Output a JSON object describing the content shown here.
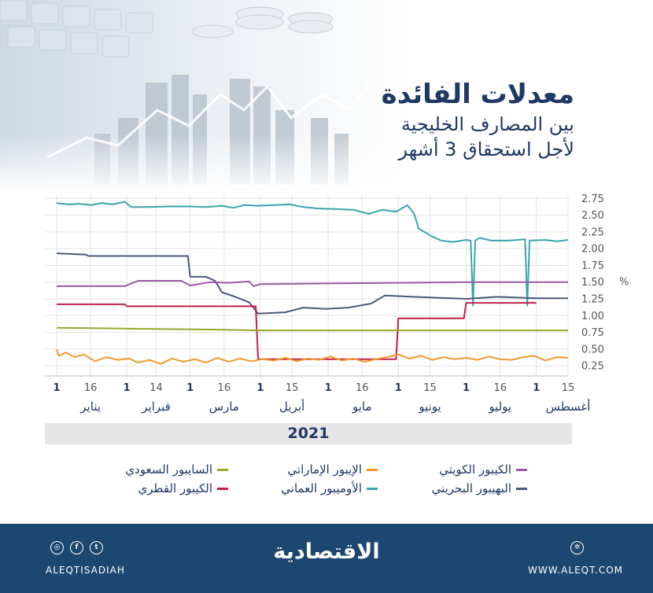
{
  "header": {
    "title": "معدلات الفائدة",
    "subtitle_1": "بين المصارف الخليجية",
    "subtitle_2": "لأجل استحقاق 3 أشهر"
  },
  "chart_data": {
    "type": "line",
    "x_domain": [
      "2021-01-01",
      "2021-08-15"
    ],
    "ylim": [
      0.1,
      2.8
    ],
    "y_ticks": [
      "2.75",
      "2.50",
      "2.25",
      "2.00",
      "1.75",
      "1.50",
      "1.25",
      "1.00",
      "0.75",
      "0.50",
      "0.25"
    ],
    "y_unit": "%",
    "x_ticks": [
      {
        "date": "2021-01-01",
        "label": "1"
      },
      {
        "date": "2021-01-16",
        "label": "16"
      },
      {
        "date": "2021-02-01",
        "label": "1"
      },
      {
        "date": "2021-02-14",
        "label": "14"
      },
      {
        "date": "2021-03-01",
        "label": "1"
      },
      {
        "date": "2021-03-16",
        "label": "16"
      },
      {
        "date": "2021-04-01",
        "label": "1"
      },
      {
        "date": "2021-04-15",
        "label": "15"
      },
      {
        "date": "2021-05-01",
        "label": "1"
      },
      {
        "date": "2021-05-16",
        "label": "16"
      },
      {
        "date": "2021-06-01",
        "label": "1"
      },
      {
        "date": "2021-06-15",
        "label": "15"
      },
      {
        "date": "2021-07-01",
        "label": "1"
      },
      {
        "date": "2021-07-16",
        "label": "16"
      },
      {
        "date": "2021-08-01",
        "label": "1"
      },
      {
        "date": "2021-08-15",
        "label": "15"
      }
    ],
    "months": [
      {
        "date": "2021-01-16",
        "label": "يناير"
      },
      {
        "date": "2021-02-14",
        "label": "فبراير"
      },
      {
        "date": "2021-03-16",
        "label": "مارس"
      },
      {
        "date": "2021-04-15",
        "label": "أبريل"
      },
      {
        "date": "2021-05-16",
        "label": "مايو"
      },
      {
        "date": "2021-06-15",
        "label": "يونيو"
      },
      {
        "date": "2021-07-16",
        "label": "يوليو"
      },
      {
        "date": "2021-08-15",
        "label": "أغسطس"
      }
    ],
    "year": "2021",
    "series": [
      {
        "name": "الأوميبور العماني",
        "color": "#3aa3ad",
        "points": [
          [
            "2021-01-01",
            2.68
          ],
          [
            "2021-01-06",
            2.66
          ],
          [
            "2021-01-11",
            2.67
          ],
          [
            "2021-01-16",
            2.65
          ],
          [
            "2021-01-21",
            2.68
          ],
          [
            "2021-01-26",
            2.66
          ],
          [
            "2021-01-31",
            2.7
          ],
          [
            "2021-02-03",
            2.62
          ],
          [
            "2021-02-10",
            2.62
          ],
          [
            "2021-02-20",
            2.63
          ],
          [
            "2021-03-01",
            2.63
          ],
          [
            "2021-03-08",
            2.62
          ],
          [
            "2021-03-15",
            2.64
          ],
          [
            "2021-03-20",
            2.61
          ],
          [
            "2021-03-25",
            2.65
          ],
          [
            "2021-03-31",
            2.64
          ],
          [
            "2021-04-07",
            2.65
          ],
          [
            "2021-04-14",
            2.66
          ],
          [
            "2021-04-20",
            2.62
          ],
          [
            "2021-04-26",
            2.6
          ],
          [
            "2021-05-05",
            2.59
          ],
          [
            "2021-05-12",
            2.58
          ],
          [
            "2021-05-19",
            2.52
          ],
          [
            "2021-05-25",
            2.58
          ],
          [
            "2021-05-31",
            2.55
          ],
          [
            "2021-06-05",
            2.65
          ],
          [
            "2021-06-08",
            2.52
          ],
          [
            "2021-06-10",
            2.3
          ],
          [
            "2021-06-16",
            2.18
          ],
          [
            "2021-06-20",
            2.12
          ],
          [
            "2021-06-25",
            2.1
          ],
          [
            "2021-07-01",
            2.13
          ],
          [
            "2021-07-03",
            2.12
          ],
          [
            "2021-07-04",
            1.15
          ],
          [
            "2021-07-05",
            2.12
          ],
          [
            "2021-07-07",
            2.16
          ],
          [
            "2021-07-12",
            2.12
          ],
          [
            "2021-07-20",
            2.12
          ],
          [
            "2021-07-27",
            2.14
          ],
          [
            "2021-07-28",
            1.15
          ],
          [
            "2021-07-29",
            2.12
          ],
          [
            "2021-08-05",
            2.13
          ],
          [
            "2021-08-10",
            2.11
          ],
          [
            "2021-08-15",
            2.13
          ]
        ]
      },
      {
        "name": "البهيبور البحريني",
        "color": "#4a5a78",
        "points": [
          [
            "2021-01-01",
            1.93
          ],
          [
            "2021-01-14",
            1.91
          ],
          [
            "2021-01-15",
            1.89
          ],
          [
            "2021-02-28",
            1.89
          ],
          [
            "2021-03-01",
            1.58
          ],
          [
            "2021-03-08",
            1.58
          ],
          [
            "2021-03-12",
            1.52
          ],
          [
            "2021-03-15",
            1.35
          ],
          [
            "2021-03-21",
            1.28
          ],
          [
            "2021-03-27",
            1.2
          ],
          [
            "2021-03-31",
            1.03
          ],
          [
            "2021-04-12",
            1.05
          ],
          [
            "2021-04-20",
            1.12
          ],
          [
            "2021-04-30",
            1.1
          ],
          [
            "2021-05-10",
            1.12
          ],
          [
            "2021-05-20",
            1.18
          ],
          [
            "2021-05-26",
            1.3
          ],
          [
            "2021-06-15",
            1.27
          ],
          [
            "2021-07-01",
            1.25
          ],
          [
            "2021-07-14",
            1.28
          ],
          [
            "2021-07-16",
            1.28
          ],
          [
            "2021-08-01",
            1.26
          ],
          [
            "2021-08-15",
            1.26
          ]
        ]
      },
      {
        "name": "الكيبور الكويتي",
        "color": "#9b59a6",
        "points": [
          [
            "2021-01-01",
            1.44
          ],
          [
            "2021-01-31",
            1.44
          ],
          [
            "2021-02-06",
            1.52
          ],
          [
            "2021-02-25",
            1.52
          ],
          [
            "2021-03-01",
            1.45
          ],
          [
            "2021-03-10",
            1.5
          ],
          [
            "2021-03-18",
            1.49
          ],
          [
            "2021-03-27",
            1.51
          ],
          [
            "2021-03-29",
            1.44
          ],
          [
            "2021-04-01",
            1.47
          ],
          [
            "2021-05-01",
            1.48
          ],
          [
            "2021-06-01",
            1.49
          ],
          [
            "2021-07-01",
            1.5
          ],
          [
            "2021-08-15",
            1.5
          ]
        ]
      },
      {
        "name": "الكيبور القطري",
        "color": "#c0204a",
        "points": [
          [
            "2021-01-01",
            1.17
          ],
          [
            "2021-01-31",
            1.17
          ],
          [
            "2021-02-01",
            1.14
          ],
          [
            "2021-03-30",
            1.14
          ],
          [
            "2021-03-31",
            0.35
          ],
          [
            "2021-05-31",
            0.35
          ],
          [
            "2021-06-01",
            0.96
          ],
          [
            "2021-06-30",
            0.96
          ],
          [
            "2021-07-01",
            1.19
          ],
          [
            "2021-08-01",
            1.19
          ]
        ]
      },
      {
        "name": "السايبور السعودي",
        "color": "#97a82b",
        "points": [
          [
            "2021-01-01",
            0.82
          ],
          [
            "2021-02-15",
            0.8
          ],
          [
            "2021-03-15",
            0.79
          ],
          [
            "2021-04-01",
            0.78
          ],
          [
            "2021-08-15",
            0.78
          ]
        ]
      },
      {
        "name": "الإيبور الإماراتي",
        "color": "#f09a2e",
        "points": [
          [
            "2021-01-01",
            0.5
          ],
          [
            "2021-01-02",
            0.4
          ],
          [
            "2021-01-05",
            0.45
          ],
          [
            "2021-01-09",
            0.38
          ],
          [
            "2021-01-13",
            0.42
          ],
          [
            "2021-01-18",
            0.32
          ],
          [
            "2021-01-23",
            0.38
          ],
          [
            "2021-01-28",
            0.34
          ],
          [
            "2021-02-02",
            0.36
          ],
          [
            "2021-02-06",
            0.3
          ],
          [
            "2021-02-11",
            0.34
          ],
          [
            "2021-02-16",
            0.28
          ],
          [
            "2021-02-21",
            0.36
          ],
          [
            "2021-02-26",
            0.31
          ],
          [
            "2021-03-03",
            0.35
          ],
          [
            "2021-03-08",
            0.3
          ],
          [
            "2021-03-13",
            0.37
          ],
          [
            "2021-03-18",
            0.31
          ],
          [
            "2021-03-23",
            0.36
          ],
          [
            "2021-03-28",
            0.32
          ],
          [
            "2021-04-02",
            0.35
          ],
          [
            "2021-04-07",
            0.33
          ],
          [
            "2021-04-12",
            0.37
          ],
          [
            "2021-04-17",
            0.32
          ],
          [
            "2021-04-22",
            0.36
          ],
          [
            "2021-04-27",
            0.34
          ],
          [
            "2021-05-02",
            0.39
          ],
          [
            "2021-05-07",
            0.33
          ],
          [
            "2021-05-12",
            0.36
          ],
          [
            "2021-05-17",
            0.31
          ],
          [
            "2021-05-22",
            0.35
          ],
          [
            "2021-05-27",
            0.38
          ],
          [
            "2021-06-01",
            0.42
          ],
          [
            "2021-06-06",
            0.36
          ],
          [
            "2021-06-11",
            0.4
          ],
          [
            "2021-06-16",
            0.34
          ],
          [
            "2021-06-21",
            0.38
          ],
          [
            "2021-06-26",
            0.35
          ],
          [
            "2021-07-01",
            0.37
          ],
          [
            "2021-07-06",
            0.34
          ],
          [
            "2021-07-11",
            0.39
          ],
          [
            "2021-07-16",
            0.35
          ],
          [
            "2021-07-21",
            0.34
          ],
          [
            "2021-07-26",
            0.38
          ],
          [
            "2021-07-31",
            0.4
          ],
          [
            "2021-08-05",
            0.33
          ],
          [
            "2021-08-10",
            0.38
          ],
          [
            "2021-08-15",
            0.37
          ]
        ]
      }
    ]
  },
  "legend": [
    {
      "label": "الكيبور الكويتي",
      "color": "#9b59a6"
    },
    {
      "label": "الإيبور الإماراتي",
      "color": "#f09a2e"
    },
    {
      "label": "السايبور السعودي",
      "color": "#97a82b"
    },
    {
      "label": "البهيبور البحريني",
      "color": "#4a5a78"
    },
    {
      "label": "الأوميبور العماني",
      "color": "#3aa3ad"
    },
    {
      "label": "الكيبور القطري",
      "color": "#c0204a"
    }
  ],
  "footer": {
    "logo": "الاقتصادية",
    "handle": "ALEQTISADIAH",
    "site": "WWW.ALEQT.COM",
    "icons": [
      "instagram-icon",
      "facebook-icon",
      "twitter-icon",
      "web-icon"
    ]
  }
}
